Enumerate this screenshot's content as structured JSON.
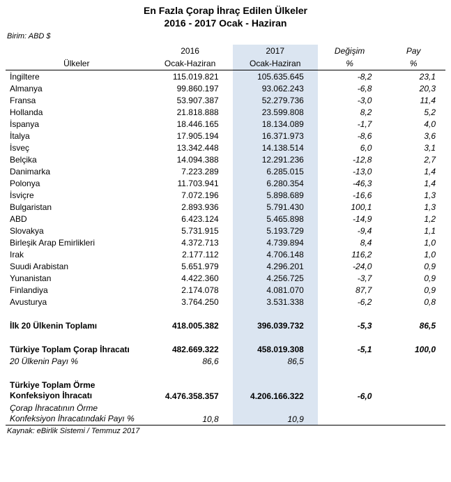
{
  "title_line1": "En Fazla Çorap İhraç Edilen Ülkeler",
  "title_line2": "2016 - 2017 Ocak - Haziran",
  "unit_label": "Birim: ABD $",
  "columns": {
    "country": "Ülkeler",
    "y2016_top": "2016",
    "y2016_bot": "Ocak-Haziran",
    "y2017_top": "2017",
    "y2017_bot": "Ocak-Haziran",
    "change_top": "Değişim",
    "change_bot": "%",
    "share_top": "Pay",
    "share_bot": "%"
  },
  "rows": [
    {
      "c": "İngiltere",
      "v16": "115.019.821",
      "v17": "105.635.645",
      "ch": "-8,2",
      "sh": "23,1"
    },
    {
      "c": "Almanya",
      "v16": "99.860.197",
      "v17": "93.062.243",
      "ch": "-6,8",
      "sh": "20,3"
    },
    {
      "c": "Fransa",
      "v16": "53.907.387",
      "v17": "52.279.736",
      "ch": "-3,0",
      "sh": "11,4"
    },
    {
      "c": "Hollanda",
      "v16": "21.818.888",
      "v17": "23.599.808",
      "ch": "8,2",
      "sh": "5,2"
    },
    {
      "c": "İspanya",
      "v16": "18.446.165",
      "v17": "18.134.089",
      "ch": "-1,7",
      "sh": "4,0"
    },
    {
      "c": "İtalya",
      "v16": "17.905.194",
      "v17": "16.371.973",
      "ch": "-8,6",
      "sh": "3,6"
    },
    {
      "c": "İsveç",
      "v16": "13.342.448",
      "v17": "14.138.514",
      "ch": "6,0",
      "sh": "3,1"
    },
    {
      "c": "Belçika",
      "v16": "14.094.388",
      "v17": "12.291.236",
      "ch": "-12,8",
      "sh": "2,7"
    },
    {
      "c": "Danimarka",
      "v16": "7.223.289",
      "v17": "6.285.015",
      "ch": "-13,0",
      "sh": "1,4"
    },
    {
      "c": "Polonya",
      "v16": "11.703.941",
      "v17": "6.280.354",
      "ch": "-46,3",
      "sh": "1,4"
    },
    {
      "c": "İsviçre",
      "v16": "7.072.196",
      "v17": "5.898.689",
      "ch": "-16,6",
      "sh": "1,3"
    },
    {
      "c": "Bulgaristan",
      "v16": "2.893.936",
      "v17": "5.791.430",
      "ch": "100,1",
      "sh": "1,3"
    },
    {
      "c": "ABD",
      "v16": "6.423.124",
      "v17": "5.465.898",
      "ch": "-14,9",
      "sh": "1,2"
    },
    {
      "c": "Slovakya",
      "v16": "5.731.915",
      "v17": "5.193.729",
      "ch": "-9,4",
      "sh": "1,1"
    },
    {
      "c": "Birleşik Arap Emirlikleri",
      "v16": "4.372.713",
      "v17": "4.739.894",
      "ch": "8,4",
      "sh": "1,0"
    },
    {
      "c": "Irak",
      "v16": "2.177.112",
      "v17": "4.706.148",
      "ch": "116,2",
      "sh": "1,0"
    },
    {
      "c": "Suudi Arabistan",
      "v16": "5.651.979",
      "v17": "4.296.201",
      "ch": "-24,0",
      "sh": "0,9"
    },
    {
      "c": "Yunanistan",
      "v16": "4.422.360",
      "v17": "4.256.725",
      "ch": "-3,7",
      "sh": "0,9"
    },
    {
      "c": "Finlandiya",
      "v16": "2.174.078",
      "v17": "4.081.070",
      "ch": "87,7",
      "sh": "0,9"
    },
    {
      "c": "Avusturya",
      "v16": "3.764.250",
      "v17": "3.531.338",
      "ch": "-6,2",
      "sh": "0,8"
    }
  ],
  "totals": {
    "top20": {
      "label": "İlk 20 Ülkenin Toplamı",
      "v16": "418.005.382",
      "v17": "396.039.732",
      "ch": "-5,3",
      "sh": "86,5"
    },
    "turkey_sock": {
      "label": "Türkiye Toplam Çorap İhracatı",
      "v16": "482.669.322",
      "v17": "458.019.308",
      "ch": "-5,1",
      "sh": "100,0"
    },
    "share20": {
      "label": "20 Ülkenin Payı %",
      "v16": "86,6",
      "v17": "86,5"
    },
    "turkey_knit": {
      "label": "Türkiye Toplam Örme Konfeksiyon İhracatı",
      "v16": "4.476.358.357",
      "v17": "4.206.166.322",
      "ch": "-6,0"
    },
    "sock_share": {
      "label": "Çorap İhracatının Örme Konfeksiyon İhracatındaki Payı %",
      "v16": "10,8",
      "v17": "10,9"
    }
  },
  "source": "Kaynak: eBirlik Sistemi / Temmuz 2017",
  "colors": {
    "highlight": "#dbe5f1",
    "border": "#000000",
    "background": "#ffffff",
    "text": "#000000"
  },
  "fonts": {
    "family": "Arial",
    "body_size_pt": 9,
    "title_size_pt": 11
  }
}
